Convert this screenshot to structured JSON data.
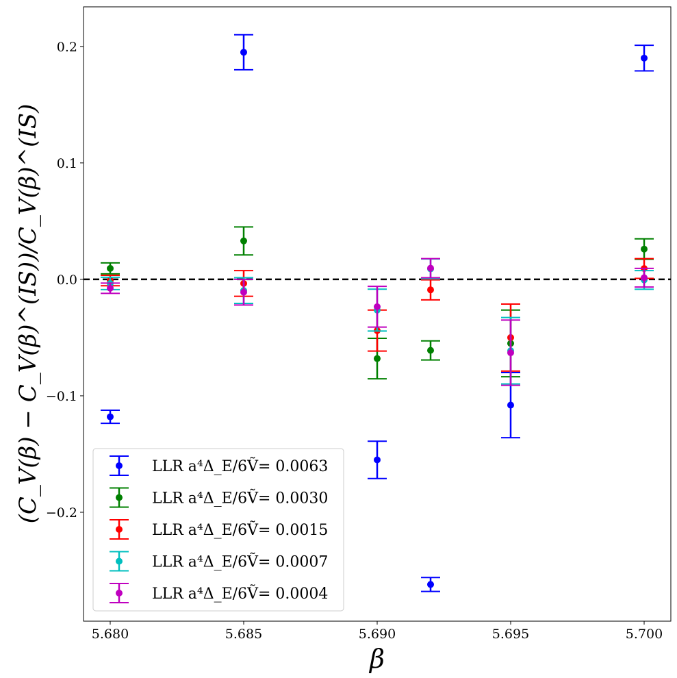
{
  "chart_data": {
    "type": "scatter",
    "subtype": "errorbar",
    "title": "",
    "xlabel": "β",
    "ylabel": "(C_V(β) − C_V(β)^(IS))/C_V(β)^(IS)",
    "xlim": [
      5.679,
      5.701
    ],
    "ylim": [
      -0.2935,
      0.234
    ],
    "xticks": [
      "5.680",
      "5.685",
      "5.690",
      "5.695",
      "5.700"
    ],
    "xtick_values": [
      5.68,
      5.685,
      5.69,
      5.695,
      5.7
    ],
    "yticks": [
      "−0.2",
      "−0.1",
      "0.0",
      "0.1",
      "0.2"
    ],
    "ytick_values": [
      -0.2,
      -0.1,
      0.0,
      0.1,
      0.2
    ],
    "reference_line": {
      "y": 0.0,
      "style": "dashed",
      "color": "#000000"
    },
    "grid": false,
    "legend_position": "lower-left",
    "x": [
      5.68,
      5.685,
      5.69,
      5.692,
      5.695,
      5.7
    ],
    "series": [
      {
        "name": "LLR a⁴Δ_E/6Ṽ= 0.0063",
        "color": "#0000ff",
        "y": [
          -0.118,
          0.195,
          -0.155,
          -0.262,
          -0.108,
          0.19
        ],
        "err": [
          0.0056,
          0.015,
          0.016,
          0.006,
          0.028,
          0.011
        ]
      },
      {
        "name": "LLR a⁴Δ_E/6Ṽ= 0.0030",
        "color": "#008000",
        "y": [
          0.0094,
          0.033,
          -0.068,
          -0.061,
          -0.055,
          0.026
        ],
        "err": [
          0.0047,
          0.012,
          0.0174,
          0.0082,
          0.0286,
          0.0088
        ]
      },
      {
        "name": "LLR a⁴Δ_E/6Ṽ= 0.0015",
        "color": "#ff0000",
        "y": [
          -0.001,
          -0.0035,
          -0.044,
          -0.009,
          -0.05,
          0.0093
        ],
        "err": [
          0.0045,
          0.011,
          0.0176,
          0.0086,
          0.0288,
          0.0085
        ]
      },
      {
        "name": "LLR a⁴Δ_E/6Ṽ= 0.0007",
        "color": "#00bfbf",
        "y": [
          -0.0035,
          -0.0096,
          -0.0264,
          0.009,
          -0.0613,
          -0.0005
        ],
        "err": [
          0.0053,
          0.011,
          0.018,
          0.0085,
          0.0285,
          0.008
        ]
      },
      {
        "name": "LLR a⁴Δ_E/6Ṽ= 0.0004",
        "color": "#bf00bf",
        "y": [
          -0.0076,
          -0.011,
          -0.0235,
          0.0096,
          -0.063,
          0.0014
        ],
        "err": [
          0.0044,
          0.011,
          0.0175,
          0.0082,
          0.028,
          0.008
        ]
      }
    ]
  }
}
